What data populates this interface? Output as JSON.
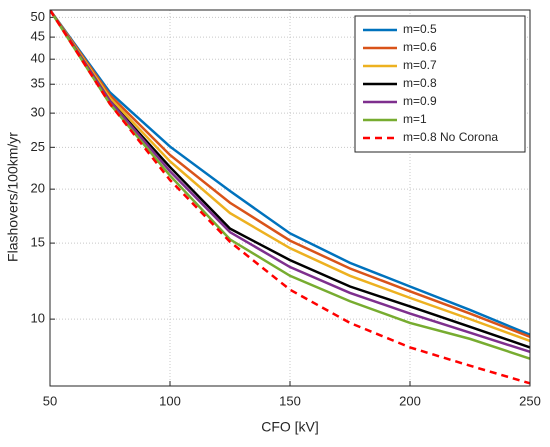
{
  "chart_data": {
    "type": "line",
    "xlabel": "CFO [kV]",
    "ylabel": "Flashovers/100km/yr",
    "x": [
      50,
      75,
      100,
      125,
      150,
      175,
      200,
      225,
      250
    ],
    "series": [
      {
        "name": "m=0.5",
        "color": "#0072bd",
        "linestyle": "solid",
        "values": [
          52,
          33.5,
          25.1,
          19.8,
          15.8,
          13.5,
          11.9,
          10.5,
          9.2
        ]
      },
      {
        "name": "m=0.6",
        "color": "#d95319",
        "linestyle": "solid",
        "values": [
          52,
          33,
          24,
          18.6,
          15.2,
          13.1,
          11.6,
          10.3,
          9.1
        ]
      },
      {
        "name": "m=0.7",
        "color": "#edb120",
        "linestyle": "solid",
        "values": [
          52,
          32.5,
          23.2,
          17.6,
          14.6,
          12.6,
          11.2,
          10.0,
          8.9
        ]
      },
      {
        "name": "m=0.8",
        "color": "#000000",
        "linestyle": "solid",
        "values": [
          52,
          32,
          22.5,
          16.2,
          13.7,
          11.9,
          10.7,
          9.6,
          8.6
        ]
      },
      {
        "name": "m=0.9",
        "color": "#7e2f8e",
        "linestyle": "solid",
        "values": [
          52,
          32,
          22,
          15.9,
          13.2,
          11.5,
          10.3,
          9.3,
          8.4
        ]
      },
      {
        "name": "m=1",
        "color": "#77ac30",
        "linestyle": "solid",
        "values": [
          52,
          31.5,
          21.5,
          15.3,
          12.6,
          11.0,
          9.8,
          9.0,
          8.1
        ]
      },
      {
        "name": "m=0.8 No Corona",
        "color": "#ff0000",
        "linestyle": "dashed",
        "values": [
          52,
          31.5,
          21,
          15.1,
          11.7,
          9.8,
          8.6,
          7.8,
          7.1
        ]
      }
    ],
    "xlim": [
      50,
      250
    ],
    "xticks": [
      50,
      100,
      150,
      200,
      250
    ],
    "ylim": [
      7,
      52
    ],
    "yticks": [
      10,
      15,
      20,
      25,
      30,
      35,
      40,
      45,
      50
    ],
    "yscale": "log",
    "grid": true,
    "legend": "upper right"
  }
}
